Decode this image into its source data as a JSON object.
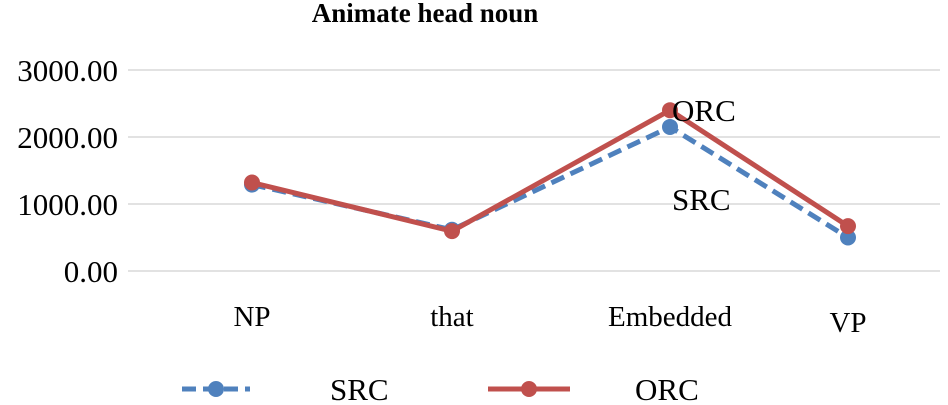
{
  "chart_data": {
    "type": "line",
    "title": "Animate head noun",
    "xlabel": "",
    "ylabel": "",
    "categories": [
      "NP",
      "that",
      "Embedded",
      "VP"
    ],
    "ylim": [
      0,
      3000
    ],
    "yticks": [
      0,
      1000,
      2000,
      3000
    ],
    "ytick_labels": [
      "0.00",
      "1000.00",
      "2000.00",
      "3000.00"
    ],
    "grid": true,
    "legend_position": "bottom",
    "series": [
      {
        "name": "SRC",
        "values": [
          1290,
          615,
          2150,
          500
        ],
        "color": "#4f81bd",
        "style": "dashed"
      },
      {
        "name": "ORC",
        "values": [
          1320,
          595,
          2400,
          670
        ],
        "color": "#c0504d",
        "style": "solid"
      }
    ],
    "annotations": [
      {
        "text": "ORC",
        "series": "ORC",
        "category": "Embedded"
      },
      {
        "text": "SRC",
        "series": "SRC",
        "category": "Embedded"
      }
    ]
  }
}
